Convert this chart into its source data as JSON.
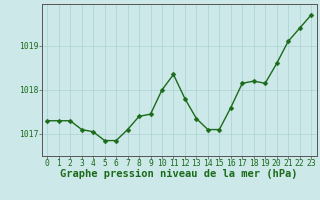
{
  "x": [
    0,
    1,
    2,
    3,
    4,
    5,
    6,
    7,
    8,
    9,
    10,
    11,
    12,
    13,
    14,
    15,
    16,
    17,
    18,
    19,
    20,
    21,
    22,
    23
  ],
  "y": [
    1017.3,
    1017.3,
    1017.3,
    1017.1,
    1017.05,
    1016.85,
    1016.85,
    1017.1,
    1017.4,
    1017.45,
    1018.0,
    1018.35,
    1017.8,
    1017.35,
    1017.1,
    1017.1,
    1017.6,
    1018.15,
    1018.2,
    1018.15,
    1018.6,
    1019.1,
    1019.4,
    1019.7
  ],
  "line_color": "#1a6b1a",
  "marker_color": "#1a6b1a",
  "bg_color": "#cce8e8",
  "grid_color": "#aad0d0",
  "axis_line_color": "#555555",
  "xlabel": "Graphe pression niveau de la mer (hPa)",
  "xlabel_fontsize": 7.5,
  "tick_labels": [
    "0",
    "1",
    "2",
    "3",
    "4",
    "5",
    "6",
    "7",
    "8",
    "9",
    "10",
    "11",
    "12",
    "13",
    "14",
    "15",
    "16",
    "17",
    "18",
    "19",
    "20",
    "21",
    "22",
    "23"
  ],
  "ytick_labels": [
    "1017",
    "1018",
    "1019"
  ],
  "ytick_values": [
    1017,
    1018,
    1019
  ],
  "ylim": [
    1016.5,
    1019.95
  ],
  "xlim": [
    -0.5,
    23.5
  ],
  "tick_color": "#1a6b1a",
  "tick_fontsize": 5.8,
  "marker_size": 2.5,
  "line_width": 1.0
}
